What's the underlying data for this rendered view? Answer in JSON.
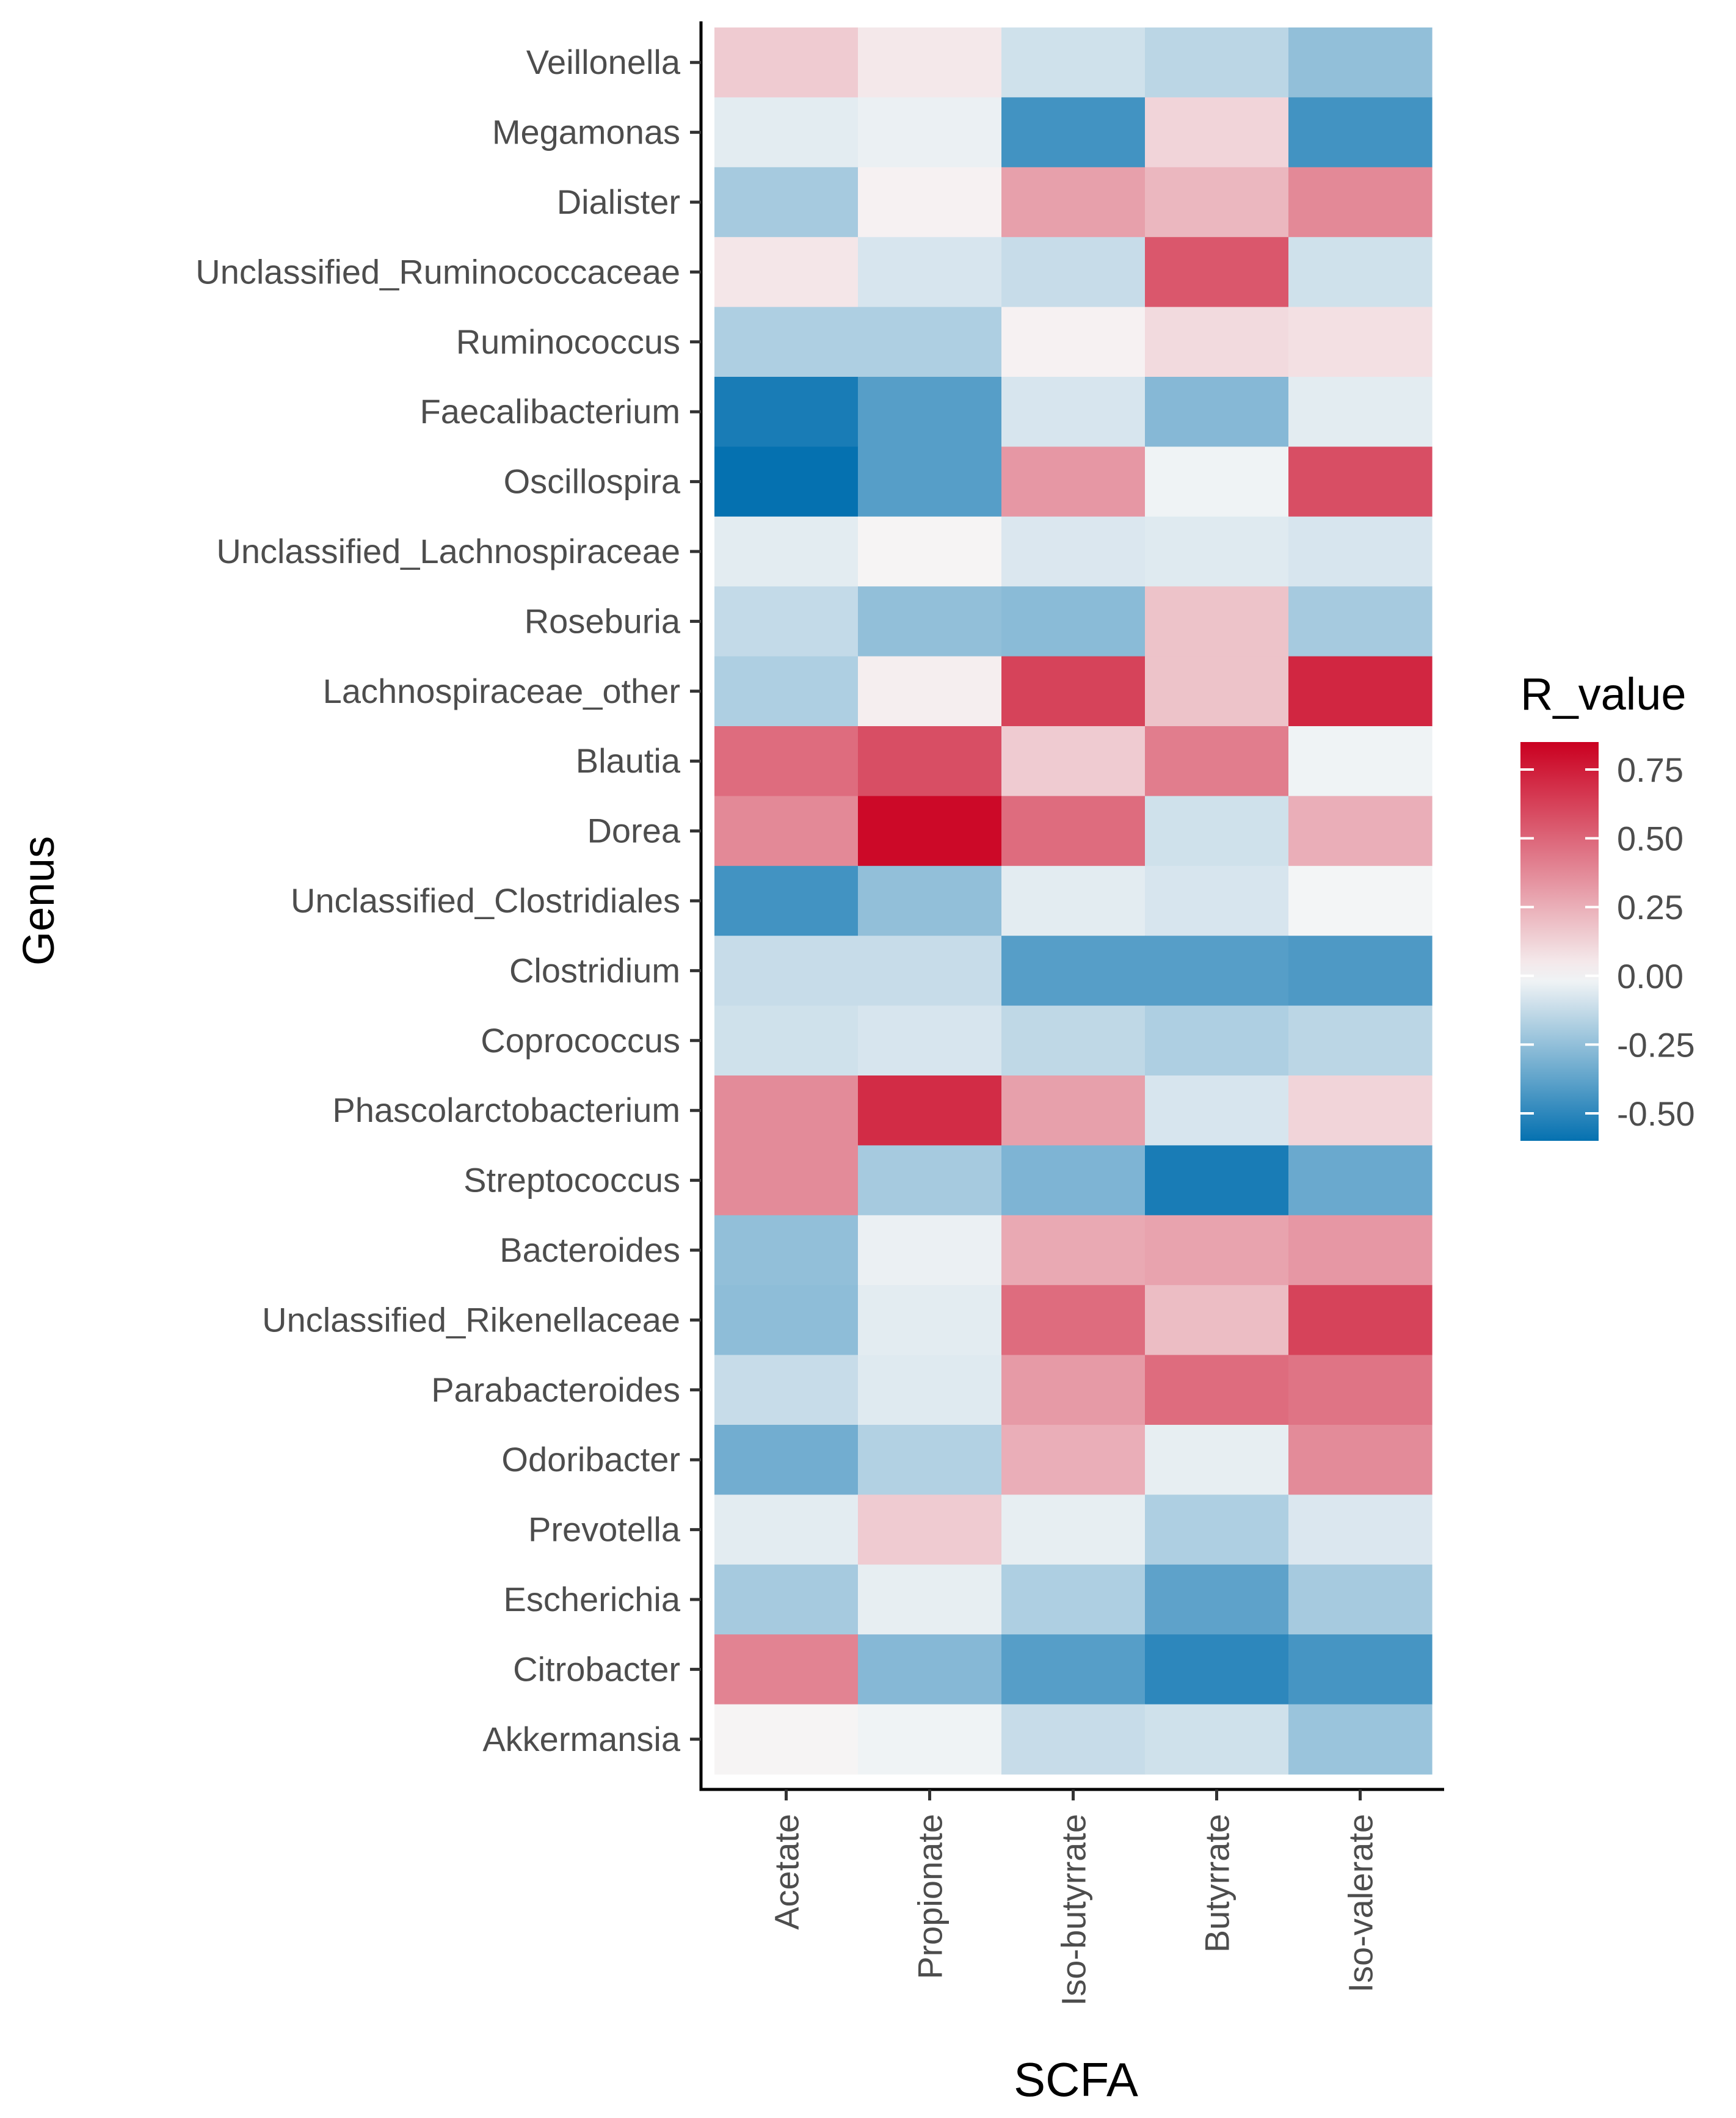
{
  "chart_data": {
    "type": "heatmap",
    "title": "",
    "xlabel": "SCFA",
    "ylabel": "Genus",
    "x": [
      "Acetate",
      "Propionate",
      "Iso-butyrrate",
      "Butyrrate",
      "Iso-valerate"
    ],
    "y": [
      "Veillonella",
      "Megamonas",
      "Dialister",
      "Unclassified_Ruminococcaceae",
      "Ruminococcus",
      "Faecalibacterium",
      "Oscillospira",
      "Unclassified_Lachnospiraceae",
      "Roseburia",
      "Lachnospiraceae_other",
      "Blautia",
      "Dorea",
      "Unclassified_Clostridiales",
      "Clostridium",
      "Coprococcus",
      "Phascolarctobacterium",
      "Streptococcus",
      "Bacteroides",
      "Unclassified_Rikenellaceae",
      "Parabacteroides",
      "Odoribacter",
      "Prevotella",
      "Escherichia",
      "Citrobacter",
      "Akkermansia"
    ],
    "values": [
      [
        0.15,
        0.05,
        -0.1,
        -0.15,
        -0.25
      ],
      [
        -0.05,
        -0.03,
        -0.45,
        0.12,
        -0.45
      ],
      [
        -0.2,
        0.02,
        0.3,
        0.22,
        0.38
      ],
      [
        0.06,
        -0.08,
        -0.12,
        0.55,
        -0.1
      ],
      [
        -0.18,
        -0.18,
        0.02,
        0.1,
        0.08
      ],
      [
        -0.55,
        -0.4,
        -0.08,
        -0.28,
        -0.05
      ],
      [
        -0.6,
        -0.4,
        0.33,
        -0.02,
        0.58
      ],
      [
        -0.05,
        0.01,
        -0.07,
        -0.06,
        -0.08
      ],
      [
        -0.13,
        -0.25,
        -0.27,
        0.18,
        -0.2
      ],
      [
        -0.18,
        0.03,
        0.62,
        0.18,
        0.72
      ],
      [
        0.48,
        0.58,
        0.15,
        0.42,
        -0.02
      ],
      [
        0.38,
        0.82,
        0.48,
        -0.1,
        0.25
      ],
      [
        -0.45,
        -0.25,
        -0.05,
        -0.08,
        -0.01
      ],
      [
        -0.12,
        -0.12,
        -0.4,
        -0.4,
        -0.42
      ],
      [
        -0.1,
        -0.08,
        -0.14,
        -0.18,
        -0.15
      ],
      [
        0.37,
        0.7,
        0.3,
        -0.08,
        0.12
      ],
      [
        0.37,
        -0.2,
        -0.3,
        -0.55,
        -0.35
      ],
      [
        -0.25,
        -0.03,
        0.27,
        0.29,
        0.33
      ],
      [
        -0.26,
        -0.05,
        0.48,
        0.2,
        0.62
      ],
      [
        -0.12,
        -0.06,
        0.32,
        0.48,
        0.45
      ],
      [
        -0.33,
        -0.17,
        0.25,
        -0.04,
        0.37
      ],
      [
        -0.05,
        0.15,
        -0.04,
        -0.18,
        -0.07
      ],
      [
        -0.2,
        -0.04,
        -0.18,
        -0.38,
        -0.2
      ],
      [
        0.4,
        -0.28,
        -0.4,
        -0.5,
        -0.44
      ],
      [
        0.01,
        -0.02,
        -0.12,
        -0.1,
        -0.23
      ]
    ],
    "legend": {
      "title": "R_value",
      "ticks": [
        0.75,
        0.5,
        0.25,
        0.0,
        -0.25,
        -0.5
      ],
      "tick_labels": [
        "0.75",
        "0.50",
        "0.25",
        "0.00",
        "-0.25",
        "-0.50"
      ],
      "range": [
        -0.6,
        0.85
      ],
      "position": "right"
    },
    "colors": {
      "low": "#0571b0",
      "mid": "#f7f7f7",
      "high": "#ca0020",
      "axis": "#000000",
      "tick_text": "#4d4d4d"
    }
  }
}
